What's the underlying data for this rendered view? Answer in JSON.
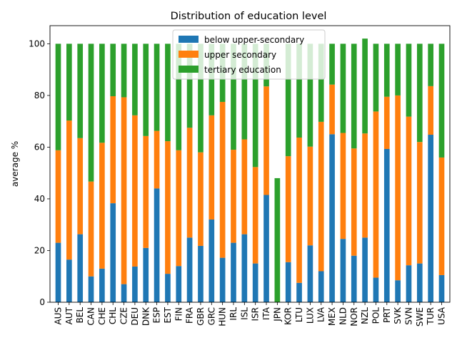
{
  "chart_data": {
    "type": "bar",
    "stacked": true,
    "title": "Distribution of education level",
    "xlabel": "",
    "ylabel": "average %",
    "ylim": [
      0,
      107
    ],
    "yticks": [
      0,
      20,
      40,
      60,
      80,
      100
    ],
    "grid": false,
    "legend_position": "top-center",
    "categories": [
      "AUS",
      "AUT",
      "BEL",
      "CAN",
      "CHE",
      "CHL",
      "CZE",
      "DEU",
      "DNK",
      "ESP",
      "EST",
      "FIN",
      "FRA",
      "GBR",
      "GRC",
      "HUN",
      "IRL",
      "ISL",
      "ISR",
      "ITA",
      "JPN",
      "KOR",
      "LTU",
      "LUX",
      "LVA",
      "MEX",
      "NLD",
      "NOR",
      "NZL",
      "POL",
      "PRT",
      "SVK",
      "SVN",
      "SWE",
      "TUR",
      "USA"
    ],
    "series": [
      {
        "name": "below upper-secondary",
        "color": "#1f77b4",
        "values": [
          23,
          16.5,
          26.3,
          10,
          13,
          38.3,
          7,
          13.8,
          21,
          44,
          11,
          14,
          25,
          21.8,
          32,
          17.2,
          23,
          26.3,
          15,
          41.5,
          0,
          15.5,
          7.5,
          22,
          12,
          65,
          24.5,
          18,
          25,
          9.5,
          59.3,
          8.5,
          14.3,
          15,
          64.8,
          10.5
        ]
      },
      {
        "name": "upper secondary",
        "color": "#ff7f0e",
        "values": [
          35.8,
          53.8,
          37.2,
          36.7,
          48.7,
          41.4,
          72.3,
          58.5,
          43.3,
          22.3,
          51.3,
          44.8,
          42.5,
          36.2,
          40.3,
          60.3,
          36,
          36.7,
          37.3,
          42,
          0,
          41,
          56.2,
          38.2,
          57.8,
          19.2,
          41,
          41.5,
          40.3,
          64.3,
          20.2,
          71.5,
          57.5,
          47,
          18.8,
          45.5
        ]
      },
      {
        "name": "tertiary education",
        "color": "#2ca02c",
        "values": [
          41.2,
          29.7,
          36.5,
          53.3,
          38.3,
          20.3,
          20.7,
          27.7,
          35.7,
          33.7,
          37.7,
          41.2,
          32.5,
          42,
          27.7,
          22.5,
          41,
          37,
          47.7,
          16.5,
          48,
          43.5,
          36.3,
          39.8,
          30.2,
          15.8,
          34.5,
          40.5,
          36.7,
          26.2,
          20.5,
          20,
          28.2,
          38,
          16.4,
          44
        ]
      }
    ]
  }
}
